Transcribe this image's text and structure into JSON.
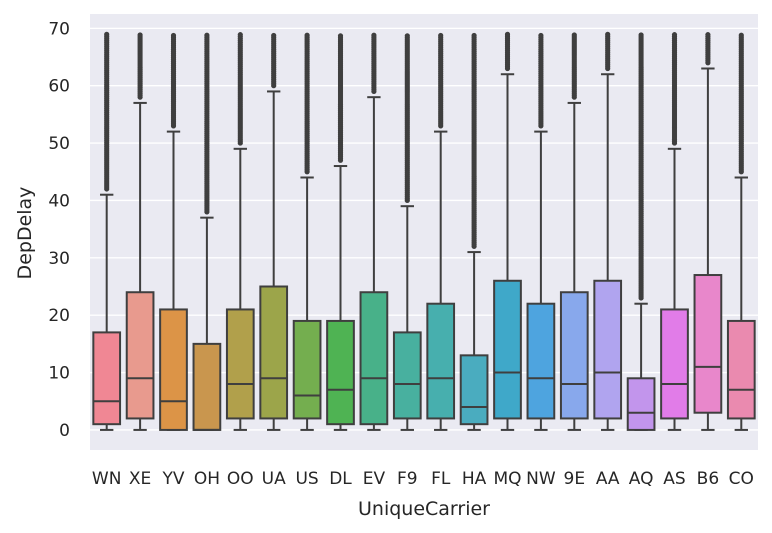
{
  "chart_data": {
    "type": "box",
    "xlabel": "UniqueCarrier",
    "ylabel": "DepDelay",
    "ylim": [
      -3.5,
      72.5
    ],
    "yticks": [
      0,
      10,
      20,
      30,
      40,
      50,
      60,
      70
    ],
    "grid": true,
    "background": "#eaeaf2",
    "categories": [
      "WN",
      "XE",
      "YV",
      "OH",
      "OO",
      "UA",
      "US",
      "DL",
      "EV",
      "F9",
      "FL",
      "HA",
      "MQ",
      "NW",
      "9E",
      "AA",
      "AQ",
      "AS",
      "B6",
      "CO"
    ],
    "boxes": [
      {
        "category": "WN",
        "color": "#f08794",
        "min": 0,
        "q1": 1,
        "median": 5,
        "q3": 17,
        "whisker_high": 41,
        "outliers_from": 42,
        "outliers_to": 69
      },
      {
        "category": "XE",
        "color": "#e89a8e",
        "min": 0,
        "q1": 2,
        "median": 9,
        "q3": 24,
        "whisker_high": 57,
        "outliers_from": 58,
        "outliers_to": 69
      },
      {
        "category": "YV",
        "color": "#dc9447",
        "min": 0,
        "q1": 0,
        "median": 5,
        "q3": 21,
        "whisker_high": 52,
        "outliers_from": 53,
        "outliers_to": 69
      },
      {
        "category": "OH",
        "color": "#c9964e",
        "min": 0,
        "q1": 0,
        "median": 0,
        "q3": 15,
        "whisker_high": 37,
        "outliers_from": 38,
        "outliers_to": 69
      },
      {
        "category": "OO",
        "color": "#b1a04b",
        "min": 0,
        "q1": 2,
        "median": 8,
        "q3": 21,
        "whisker_high": 49,
        "outliers_from": 50,
        "outliers_to": 69
      },
      {
        "category": "UA",
        "color": "#9ca54a",
        "min": 0,
        "q1": 2,
        "median": 9,
        "q3": 25,
        "whisker_high": 59,
        "outliers_from": 60,
        "outliers_to": 69
      },
      {
        "category": "US",
        "color": "#74ae4f",
        "min": 0,
        "q1": 2,
        "median": 6,
        "q3": 19,
        "whisker_high": 44,
        "outliers_from": 45,
        "outliers_to": 69
      },
      {
        "category": "DL",
        "color": "#4fb353",
        "min": 0,
        "q1": 1,
        "median": 7,
        "q3": 19,
        "whisker_high": 46,
        "outliers_from": 47,
        "outliers_to": 69
      },
      {
        "category": "EV",
        "color": "#48b189",
        "min": 0,
        "q1": 1,
        "median": 9,
        "q3": 24,
        "whisker_high": 58,
        "outliers_from": 59,
        "outliers_to": 69
      },
      {
        "category": "F9",
        "color": "#48b09f",
        "min": 0,
        "q1": 2,
        "median": 8,
        "q3": 17,
        "whisker_high": 39,
        "outliers_from": 40,
        "outliers_to": 69
      },
      {
        "category": "FL",
        "color": "#47afae",
        "min": 0,
        "q1": 2,
        "median": 9,
        "q3": 22,
        "whisker_high": 52,
        "outliers_from": 53,
        "outliers_to": 69
      },
      {
        "category": "HA",
        "color": "#4aacbf",
        "min": 0,
        "q1": 1,
        "median": 4,
        "q3": 13,
        "whisker_high": 31,
        "outliers_from": 32,
        "outliers_to": 69
      },
      {
        "category": "MQ",
        "color": "#3fa8c9",
        "min": 0,
        "q1": 2,
        "median": 10,
        "q3": 26,
        "whisker_high": 62,
        "outliers_from": 63,
        "outliers_to": 69
      },
      {
        "category": "NW",
        "color": "#4ea4df",
        "min": 0,
        "q1": 2,
        "median": 9,
        "q3": 22,
        "whisker_high": 52,
        "outliers_from": 53,
        "outliers_to": 69
      },
      {
        "category": "9E",
        "color": "#88a8ec",
        "min": 0,
        "q1": 2,
        "median": 8,
        "q3": 24,
        "whisker_high": 57,
        "outliers_from": 58,
        "outliers_to": 69
      },
      {
        "category": "AA",
        "color": "#b0a4ef",
        "min": 0,
        "q1": 2,
        "median": 10,
        "q3": 26,
        "whisker_high": 62,
        "outliers_from": 63,
        "outliers_to": 69
      },
      {
        "category": "AQ",
        "color": "#c295ec",
        "min": 0,
        "q1": 0,
        "median": 3,
        "q3": 9,
        "whisker_high": 22,
        "outliers_from": 23,
        "outliers_to": 69
      },
      {
        "category": "AS",
        "color": "#e17ce8",
        "min": 0,
        "q1": 2,
        "median": 8,
        "q3": 21,
        "whisker_high": 49,
        "outliers_from": 50,
        "outliers_to": 69
      },
      {
        "category": "B6",
        "color": "#e887cb",
        "min": 0,
        "q1": 3,
        "median": 11,
        "q3": 27,
        "whisker_high": 63,
        "outliers_from": 64,
        "outliers_to": 69
      },
      {
        "category": "CO",
        "color": "#ea8aaf",
        "min": 0,
        "q1": 2,
        "median": 7,
        "q3": 19,
        "whisker_high": 44,
        "outliers_from": 45,
        "outliers_to": 69
      }
    ]
  }
}
